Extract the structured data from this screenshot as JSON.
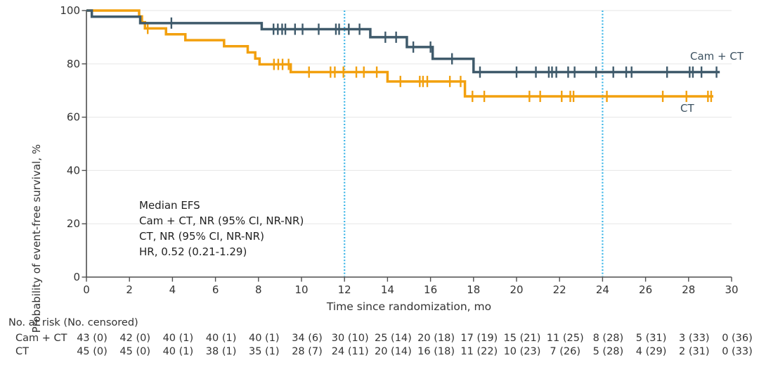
{
  "chart_data": {
    "type": "line",
    "subtype": "kaplan-meier-step",
    "title": "",
    "xlabel": "Time since randomization, mo",
    "ylabel": "Probability of event-free survival, %",
    "xlim": [
      0,
      30
    ],
    "ylim": [
      0,
      100
    ],
    "xticks": [
      0,
      2,
      4,
      6,
      8,
      10,
      12,
      14,
      16,
      18,
      20,
      22,
      24,
      26,
      28,
      30
    ],
    "yticks": [
      0,
      20,
      40,
      60,
      80,
      100
    ],
    "grid": "horizontal-light",
    "colors": {
      "axis": "#4f4f4f",
      "gridline": "#eaeaea",
      "text": "#333333",
      "reference_line": "#3ab5e7",
      "cam_ct": "#3f5a6b",
      "ct": "#f2a00e",
      "series_label_text": "#3d5261"
    },
    "reference_lines_x": {
      "values": [
        12,
        24
      ],
      "style": "dotted"
    },
    "series": [
      {
        "name": "Cam + CT",
        "color": "#3f5a6b",
        "steps": [
          [
            0,
            100
          ],
          [
            0.25,
            97.7
          ],
          [
            2.5,
            95.3
          ],
          [
            8.15,
            93.0
          ],
          [
            13.2,
            90.0
          ],
          [
            14.9,
            86.3
          ],
          [
            16.1,
            81.9
          ],
          [
            18.0,
            76.9
          ]
        ],
        "end_time": 29.45,
        "censor_times": [
          3.95,
          8.7,
          8.9,
          9.1,
          9.25,
          9.7,
          10.05,
          10.8,
          11.6,
          11.75,
          12.2,
          12.7,
          13.9,
          14.4,
          15.2,
          16.0,
          17.0,
          18.3,
          20.0,
          20.9,
          21.5,
          21.65,
          21.85,
          22.4,
          22.7,
          23.7,
          24.5,
          25.1,
          25.35,
          27.0,
          28.05,
          28.2,
          28.6,
          29.3
        ]
      },
      {
        "name": "CT",
        "color": "#f2a00e",
        "steps": [
          [
            0,
            100
          ],
          [
            2.45,
            97.8
          ],
          [
            2.58,
            95.6
          ],
          [
            2.72,
            93.3
          ],
          [
            3.7,
            91.1
          ],
          [
            4.6,
            88.9
          ],
          [
            6.4,
            86.6
          ],
          [
            7.5,
            84.3
          ],
          [
            7.85,
            82.0
          ],
          [
            8.05,
            79.8
          ],
          [
            9.5,
            76.9
          ],
          [
            14.0,
            73.4
          ],
          [
            17.6,
            67.8
          ]
        ],
        "end_time": 29.15,
        "censor_times": [
          2.85,
          8.72,
          8.92,
          9.12,
          9.4,
          10.35,
          11.35,
          11.55,
          11.95,
          12.55,
          12.9,
          13.5,
          14.6,
          15.5,
          15.65,
          15.85,
          16.9,
          17.4,
          17.95,
          18.5,
          20.6,
          21.1,
          22.1,
          22.5,
          22.65,
          24.2,
          26.8,
          27.9,
          28.9,
          29.05
        ]
      }
    ],
    "annotation": {
      "lines": [
        "Median EFS",
        "Cam + CT, NR (95% CI, NR-NR)",
        "CT, NR (95% CI, NR-NR)",
        "HR, 0.52 (0.21-1.29)"
      ]
    },
    "risk_table": {
      "header": "No. at risk (No. censored)",
      "time_points": [
        0,
        2,
        4,
        6,
        8,
        10,
        12,
        14,
        16,
        18,
        20,
        22,
        24,
        26,
        28,
        30
      ],
      "rows": [
        {
          "label": "Cam + CT",
          "values": [
            "43 (0)",
            "42 (0)",
            "40 (1)",
            "40 (1)",
            "40 (1)",
            "34 (6)",
            "30 (10)",
            "25 (14)",
            "20 (18)",
            "17 (19)",
            "15 (21)",
            "11 (25)",
            "8 (28)",
            "5 (31)",
            "3 (33)",
            "0 (36)"
          ]
        },
        {
          "label": "CT",
          "values": [
            "45 (0)",
            "45 (0)",
            "40 (1)",
            "38 (1)",
            "35 (1)",
            "28 (7)",
            "24 (11)",
            "20 (14)",
            "16 (18)",
            "11 (22)",
            "10 (23)",
            "7 (26)",
            "5 (28)",
            "4 (29)",
            "2 (31)",
            "0 (33)"
          ]
        }
      ]
    }
  }
}
